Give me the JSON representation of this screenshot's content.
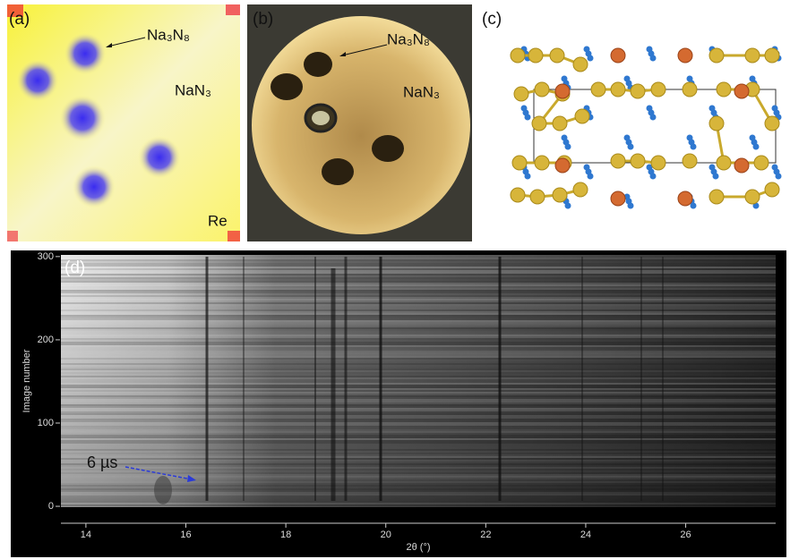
{
  "panels": [
    {
      "label": "(a)",
      "annotations": [
        "Na₃N₈",
        "NaN₃",
        "Re"
      ]
    },
    {
      "label": "(b)",
      "annotations": [
        "Na₃N₈",
        "NaN₃"
      ]
    },
    {
      "label": "(c)"
    }
  ],
  "chart_data": {
    "type": "image",
    "panel_label": "(d)",
    "x_label": "2θ (°)",
    "y_label": "Image number",
    "xlim": [
      13.5,
      27.8
    ],
    "ylim": [
      -1,
      302
    ],
    "xticks": [
      14,
      16,
      18,
      20,
      22,
      24,
      26
    ],
    "yticks": [
      0,
      100,
      200,
      300
    ],
    "annotation": "6 µs"
  }
}
